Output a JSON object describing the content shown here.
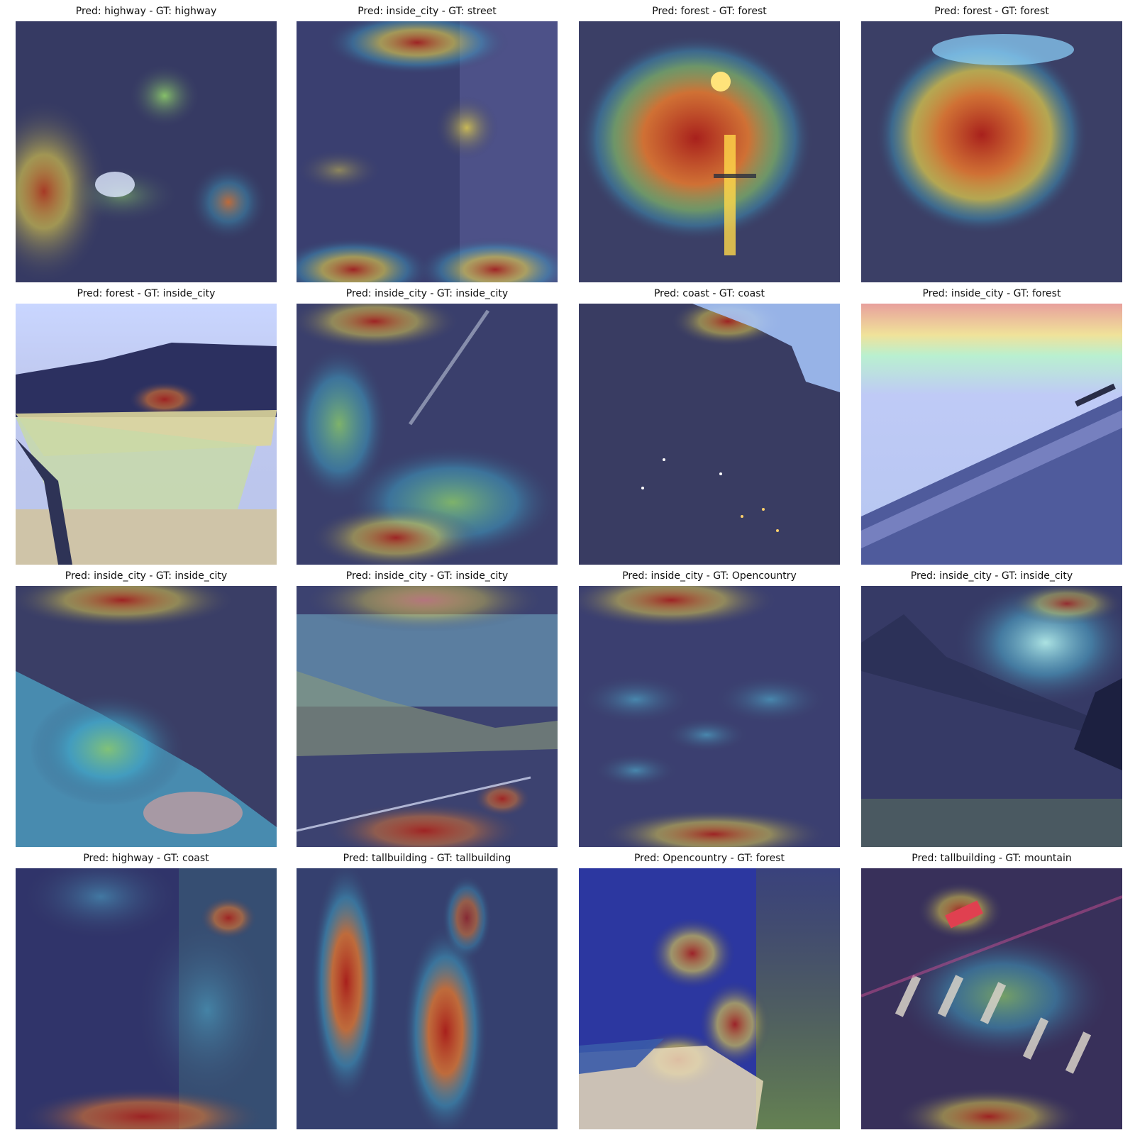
{
  "figure": {
    "panels": [
      {
        "pred": "highway",
        "gt": "highway",
        "title": "Pred: highway - GT: highway"
      },
      {
        "pred": "inside_city",
        "gt": "street",
        "title": "Pred: inside_city - GT: street"
      },
      {
        "pred": "forest",
        "gt": "forest",
        "title": "Pred: forest - GT: forest"
      },
      {
        "pred": "forest",
        "gt": "forest",
        "title": "Pred: forest - GT: forest"
      },
      {
        "pred": "forest",
        "gt": "inside_city",
        "title": "Pred: forest - GT: inside_city"
      },
      {
        "pred": "inside_city",
        "gt": "inside_city",
        "title": "Pred: inside_city - GT: inside_city"
      },
      {
        "pred": "coast",
        "gt": "coast",
        "title": "Pred: coast - GT: coast"
      },
      {
        "pred": "inside_city",
        "gt": "forest",
        "title": "Pred: inside_city - GT: forest"
      },
      {
        "pred": "inside_city",
        "gt": "inside_city",
        "title": "Pred: inside_city - GT: inside_city"
      },
      {
        "pred": "inside_city",
        "gt": "inside_city",
        "title": "Pred: inside_city - GT: inside_city"
      },
      {
        "pred": "inside_city",
        "gt": "Opencountry",
        "title": "Pred: inside_city - GT: Opencountry"
      },
      {
        "pred": "inside_city",
        "gt": "inside_city",
        "title": "Pred: inside_city - GT: inside_city"
      },
      {
        "pred": "highway",
        "gt": "coast",
        "title": "Pred: highway - GT: coast"
      },
      {
        "pred": "tallbuilding",
        "gt": "tallbuilding",
        "title": "Pred: tallbuilding - GT: tallbuilding"
      },
      {
        "pred": "Opencountry",
        "gt": "forest",
        "title": "Pred: Opencountry - GT: forest"
      },
      {
        "pred": "tallbuilding",
        "gt": "mountain",
        "title": "Pred: tallbuilding - GT: mountain"
      }
    ]
  },
  "colors": {
    "base": "#3b3f66",
    "cool": "#2e3a8c",
    "cyan": "#3fa7c9",
    "green": "#8fcf6a",
    "yellow": "#e8d34a",
    "orange": "#e0762f",
    "red": "#a8201c",
    "title_text": "#111111"
  }
}
